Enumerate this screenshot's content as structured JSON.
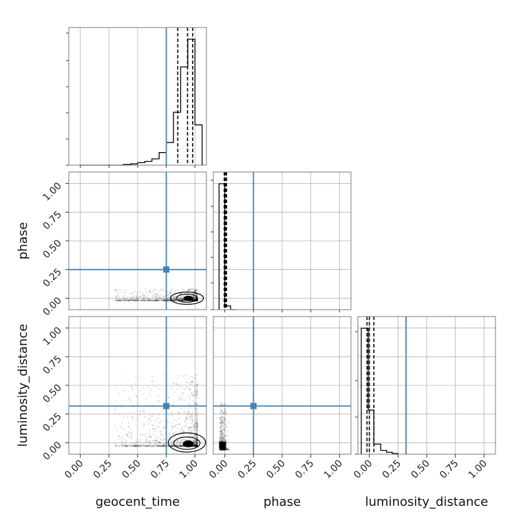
{
  "colors": {
    "truth": "#4682b4",
    "hist": "#000000",
    "grid": "#b0b0b0",
    "frame": "#7a7a7a",
    "samples": "#000000"
  },
  "chart_data": {
    "type": "scatter",
    "variant": "corner-plot",
    "parameters": [
      "geocent_time",
      "phase",
      "luminosity_distance"
    ],
    "axis_labels": {
      "x": [
        "geocent_time",
        "phase",
        "luminosity_distance"
      ],
      "y": [
        "",
        "phase",
        "luminosity_distance"
      ]
    },
    "tick_values": [
      0.0,
      0.25,
      0.5,
      0.75,
      1.0
    ],
    "tick_labels": [
      "0.00",
      "0.25",
      "0.50",
      "0.75",
      "1.00"
    ],
    "xlim": {
      "geocent_time": [
        -0.1,
        1.1
      ],
      "phase": [
        -0.1,
        1.1
      ],
      "luminosity_distance": [
        -0.1,
        1.1
      ]
    },
    "truths": {
      "geocent_time": 0.75,
      "phase": 0.25,
      "luminosity_distance": 0.32
    },
    "grid": true,
    "histograms": {
      "geocent_time": {
        "bin_edges": [
          0.0,
          0.0625,
          0.125,
          0.1875,
          0.25,
          0.3125,
          0.375,
          0.4375,
          0.5,
          0.5625,
          0.625,
          0.6875,
          0.75,
          0.8125,
          0.875,
          0.9375,
          1.0,
          1.0625
        ],
        "counts": [
          0,
          0,
          0,
          0,
          0,
          0,
          0.005,
          0.01,
          0.02,
          0.03,
          0.05,
          0.1,
          0.18,
          0.42,
          0.78,
          1.0,
          0.32
        ],
        "quantiles": [
          0.85,
          0.935,
          0.98
        ]
      },
      "phase": {
        "bin_edges": [
          -0.05,
          0.0,
          0.05,
          0.1
        ],
        "counts": [
          1.0,
          0.03,
          0.0
        ],
        "quantiles": [
          -0.005,
          0.005,
          0.015
        ]
      },
      "luminosity_distance": {
        "bin_edges": [
          -0.07,
          -0.01,
          0.04,
          0.1,
          0.15,
          0.2,
          0.25
        ],
        "counts": [
          1.0,
          0.35,
          0.08,
          0.03,
          0.015,
          0.005
        ],
        "quantiles": [
          -0.02,
          0.0,
          0.04
        ]
      }
    },
    "pairs": [
      {
        "x": "geocent_time",
        "y": "phase",
        "x_range": [
          0.3,
          1.02
        ],
        "y_range": [
          -0.02,
          0.08
        ],
        "density_peak": [
          0.93,
          0.0
        ]
      },
      {
        "x": "geocent_time",
        "y": "luminosity_distance",
        "x_range": [
          0.3,
          1.02
        ],
        "y_range": [
          -0.03,
          0.62
        ],
        "density_peak": [
          0.93,
          -0.01
        ]
      },
      {
        "x": "phase",
        "y": "luminosity_distance",
        "x_range": [
          -0.04,
          0.05
        ],
        "y_range": [
          -0.06,
          0.35
        ],
        "density_peak": [
          -0.02,
          -0.02
        ]
      }
    ]
  }
}
